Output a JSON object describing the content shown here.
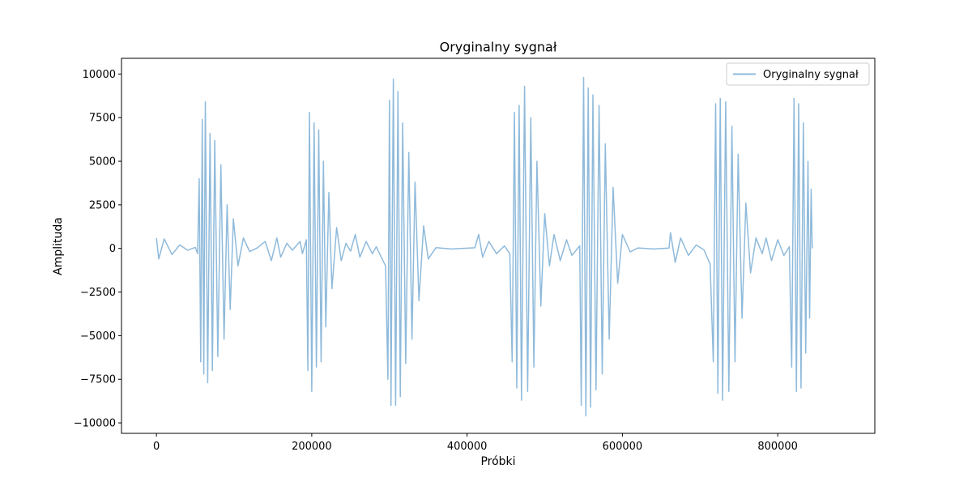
{
  "chart_data": {
    "type": "line",
    "title": "Oryginalny sygnał",
    "xlabel": "Próbki",
    "ylabel": "Amplituda",
    "xlim": [
      -45000,
      925000
    ],
    "ylim": [
      -10600,
      10900
    ],
    "xticks": [
      0,
      200000,
      400000,
      600000,
      800000
    ],
    "xtick_labels": [
      "0",
      "200000",
      "400000",
      "600000",
      "800000"
    ],
    "yticks": [
      10000,
      7500,
      5000,
      2500,
      0,
      -2500,
      -5000,
      -7500,
      -10000
    ],
    "ytick_labels": [
      "10000",
      "7500",
      "5000",
      "2500",
      "0",
      "−2500",
      "−5000",
      "−7500",
      "−10000"
    ],
    "grid": false,
    "legend_position": "upper right",
    "series": [
      {
        "name": "Oryginalny sygnał",
        "color": "#8fbadb",
        "points": [
          [
            0,
            600
          ],
          [
            3000,
            -600
          ],
          [
            10000,
            550
          ],
          [
            20000,
            -350
          ],
          [
            30000,
            200
          ],
          [
            40000,
            -100
          ],
          [
            50000,
            60
          ],
          [
            53000,
            -300
          ],
          [
            55000,
            4000
          ],
          [
            57000,
            -6500
          ],
          [
            59000,
            7400
          ],
          [
            61000,
            -7200
          ],
          [
            63000,
            8400
          ],
          [
            66000,
            -7700
          ],
          [
            69000,
            6600
          ],
          [
            72000,
            -7000
          ],
          [
            75000,
            6200
          ],
          [
            79000,
            -6200
          ],
          [
            83000,
            4800
          ],
          [
            87000,
            -5200
          ],
          [
            91000,
            2500
          ],
          [
            95000,
            -3500
          ],
          [
            99000,
            1700
          ],
          [
            105000,
            -1000
          ],
          [
            112000,
            600
          ],
          [
            120000,
            -180
          ],
          [
            130000,
            40
          ],
          [
            140000,
            400
          ],
          [
            148000,
            -700
          ],
          [
            155000,
            600
          ],
          [
            160000,
            -500
          ],
          [
            168000,
            300
          ],
          [
            175000,
            -100
          ],
          [
            185000,
            400
          ],
          [
            188000,
            -300
          ],
          [
            193000,
            500
          ],
          [
            195000,
            -7000
          ],
          [
            197000,
            7800
          ],
          [
            200000,
            -8200
          ],
          [
            203000,
            7200
          ],
          [
            206000,
            -6800
          ],
          [
            209000,
            6800
          ],
          [
            212000,
            -6500
          ],
          [
            215000,
            5000
          ],
          [
            218000,
            -4500
          ],
          [
            222000,
            3200
          ],
          [
            226000,
            -2300
          ],
          [
            232000,
            1200
          ],
          [
            238000,
            -700
          ],
          [
            244000,
            300
          ],
          [
            250000,
            -150
          ],
          [
            256000,
            800
          ],
          [
            262000,
            -500
          ],
          [
            270000,
            400
          ],
          [
            278000,
            -300
          ],
          [
            283000,
            100
          ],
          [
            295000,
            -1000
          ],
          [
            298000,
            -7500
          ],
          [
            300000,
            8500
          ],
          [
            302000,
            -9000
          ],
          [
            305000,
            9700
          ],
          [
            308000,
            -9000
          ],
          [
            311000,
            9000
          ],
          [
            314000,
            -8500
          ],
          [
            317000,
            7200
          ],
          [
            321000,
            -6600
          ],
          [
            325000,
            5500
          ],
          [
            329000,
            -5200
          ],
          [
            333000,
            3800
          ],
          [
            338000,
            -3000
          ],
          [
            344000,
            1300
          ],
          [
            350000,
            -600
          ],
          [
            360000,
            50
          ],
          [
            380000,
            -30
          ],
          [
            410000,
            40
          ],
          [
            415000,
            800
          ],
          [
            420000,
            -500
          ],
          [
            428000,
            400
          ],
          [
            438000,
            -300
          ],
          [
            448000,
            150
          ],
          [
            455000,
            -300
          ],
          [
            458000,
            -6500
          ],
          [
            461000,
            7800
          ],
          [
            464000,
            -8000
          ],
          [
            467000,
            8200
          ],
          [
            470000,
            -8700
          ],
          [
            474000,
            9300
          ],
          [
            478000,
            -8200
          ],
          [
            482000,
            7500
          ],
          [
            486000,
            -6800
          ],
          [
            490000,
            5000
          ],
          [
            495000,
            -3300
          ],
          [
            500000,
            2000
          ],
          [
            506000,
            -1000
          ],
          [
            512000,
            800
          ],
          [
            520000,
            -700
          ],
          [
            528000,
            500
          ],
          [
            535000,
            -400
          ],
          [
            545000,
            150
          ],
          [
            547000,
            -9000
          ],
          [
            550000,
            9800
          ],
          [
            553000,
            -9600
          ],
          [
            556000,
            9200
          ],
          [
            559000,
            -9100
          ],
          [
            562000,
            8800
          ],
          [
            566000,
            -8100
          ],
          [
            570000,
            8200
          ],
          [
            574000,
            -7200
          ],
          [
            578000,
            6000
          ],
          [
            583000,
            -5200
          ],
          [
            588000,
            3500
          ],
          [
            594000,
            -2000
          ],
          [
            600000,
            800
          ],
          [
            610000,
            -200
          ],
          [
            620000,
            30
          ],
          [
            640000,
            -30
          ],
          [
            660000,
            20
          ],
          [
            662000,
            900
          ],
          [
            668000,
            -800
          ],
          [
            675000,
            600
          ],
          [
            685000,
            -400
          ],
          [
            695000,
            200
          ],
          [
            705000,
            -80
          ],
          [
            713000,
            -900
          ],
          [
            717000,
            -6500
          ],
          [
            720000,
            8300
          ],
          [
            723000,
            -8300
          ],
          [
            726000,
            8600
          ],
          [
            729000,
            -8700
          ],
          [
            733000,
            8400
          ],
          [
            737000,
            -8200
          ],
          [
            741000,
            7000
          ],
          [
            745000,
            -6500
          ],
          [
            749000,
            5400
          ],
          [
            754000,
            -4000
          ],
          [
            759000,
            2600
          ],
          [
            765000,
            -1400
          ],
          [
            772000,
            600
          ],
          [
            780000,
            -300
          ],
          [
            785000,
            600
          ],
          [
            792000,
            -700
          ],
          [
            800000,
            500
          ],
          [
            808000,
            -400
          ],
          [
            815000,
            100
          ],
          [
            818000,
            -6800
          ],
          [
            821000,
            8600
          ],
          [
            824000,
            -8200
          ],
          [
            827000,
            8300
          ],
          [
            830000,
            -8000
          ],
          [
            833000,
            7200
          ],
          [
            836000,
            -6000
          ],
          [
            839000,
            5000
          ],
          [
            841000,
            -4000
          ],
          [
            843000,
            3400
          ],
          [
            844500,
            0
          ]
        ]
      }
    ]
  }
}
